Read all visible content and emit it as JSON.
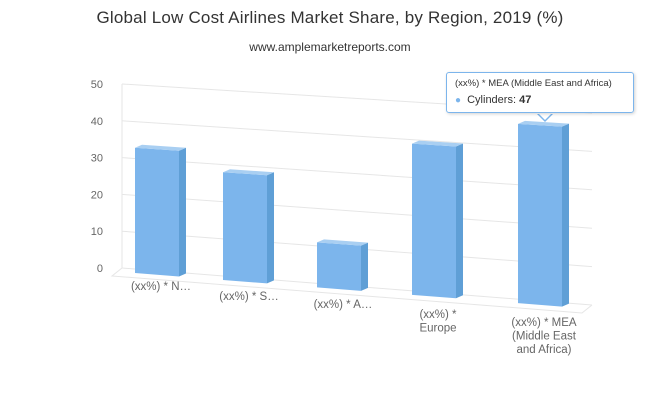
{
  "chart_data": {
    "type": "bar",
    "title": "Global Low Cost Airlines Market Share, by Region, 2019 (%)",
    "subtitle": "www.amplemarketreports.com",
    "categories": [
      "(xx%) * N…",
      "(xx%) * S…",
      "(xx%) * A…",
      "(xx%) * Europe",
      "(xx%) * MEA (Middle East and Africa)"
    ],
    "category_label_lines": [
      [
        "(xx%) * N…"
      ],
      [
        "(xx%) * S…"
      ],
      [
        "(xx%) * A…"
      ],
      [
        "(xx%) *",
        "Europe"
      ],
      [
        "(xx%) * MEA",
        "(Middle East",
        "and Africa)"
      ]
    ],
    "series": [
      {
        "name": "Cylinders",
        "values": [
          34,
          29,
          12,
          40,
          47
        ]
      }
    ],
    "yticks": [
      0,
      10,
      20,
      30,
      40,
      50
    ],
    "ylim": [
      0,
      50
    ],
    "grid": true,
    "legend": "none",
    "bar_color": "#7cb5ec",
    "bar_side_color": "#5f9fd6",
    "bar_top_color": "#a9cff2"
  },
  "tooltip": {
    "header": "(xx%) * MEA (Middle East and Africa)",
    "series_name": "Cylinders:",
    "value": "47"
  }
}
